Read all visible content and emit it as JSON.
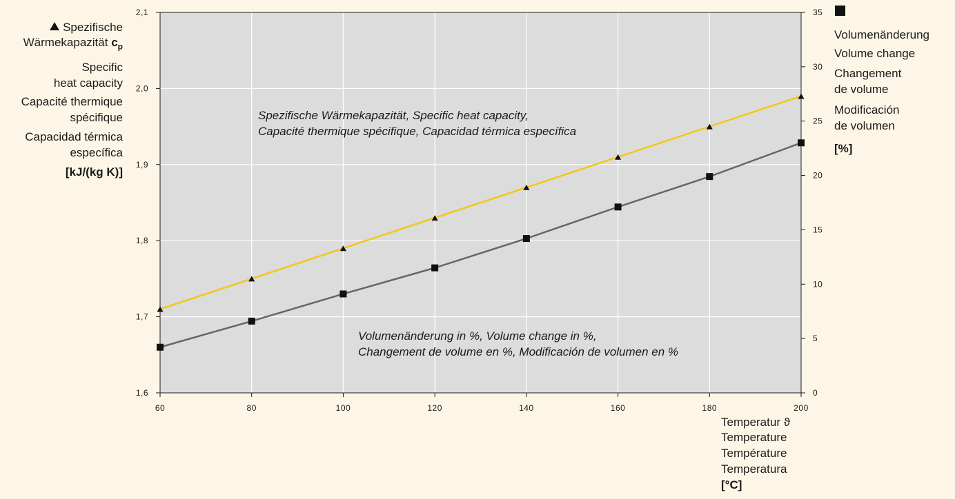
{
  "colors": {
    "background": "#fdf6e6",
    "plot_bg": "#dcdcdc",
    "heat_line": "#f5c518",
    "volume_line": "#666666",
    "grid": "#ffffff",
    "axis": "#1a1a1a"
  },
  "left_axis": {
    "marker_icon": "triangle-icon",
    "line1": "Spezifische",
    "line2_text": "Wärmekapazität ",
    "line2_symbol": "c",
    "line2_sub": "p",
    "line3": "Specific",
    "line4": "heat capacity",
    "line5": "Capacité thermique",
    "line6": "spécifique",
    "line7": "Capacidad térmica",
    "line8": "específica",
    "unit": "[kJ/(kg K)]"
  },
  "right_axis": {
    "marker_icon": "square-icon",
    "line1": "Volumenänderung",
    "line2": "Volume change",
    "line3": "Changement",
    "line4": "de volume",
    "line5": "Modificación",
    "line6": "de volumen",
    "unit": "[%]"
  },
  "x_axis": {
    "line1": "Temperatur ϑ",
    "line2": "Temperature",
    "line3": "Température",
    "line4": "Temperatura",
    "unit": "[°C]"
  },
  "annotations": {
    "heat_line1": "Spezifische Wärmekapazität, Specific heat capacity,",
    "heat_line2": "Capacité thermique spécifique, Capacidad térmica específica",
    "vol_line1": "Volumenänderung in %, Volume change in %,",
    "vol_line2": "Changement de volume en %, Modificación de volumen en %"
  },
  "chart_data": {
    "type": "line",
    "grid": true,
    "x": [
      60,
      80,
      100,
      120,
      140,
      160,
      180,
      200
    ],
    "xlim": [
      60,
      200
    ],
    "xticks": [
      "60",
      "80",
      "100",
      "120",
      "140",
      "160",
      "180",
      "200"
    ],
    "ylim_left": [
      1.6,
      2.1
    ],
    "yticks_left": [
      "1,6",
      "1,7",
      "1,8",
      "1,9",
      "2,0",
      "2,1"
    ],
    "ylim_right": [
      0,
      35
    ],
    "yticks_right": [
      "0",
      "5",
      "10",
      "15",
      "20",
      "25",
      "30",
      "35"
    ],
    "series": [
      {
        "name": "Spezifische Wärmekapazität",
        "axis": "left",
        "marker": "triangle",
        "values": [
          1.71,
          1.75,
          1.79,
          1.83,
          1.87,
          1.91,
          1.95,
          1.99
        ]
      },
      {
        "name": "Volumenänderung",
        "axis": "right",
        "marker": "square",
        "values": [
          4.2,
          6.6,
          9.1,
          11.5,
          14.2,
          17.1,
          19.9,
          23.0
        ]
      }
    ]
  }
}
